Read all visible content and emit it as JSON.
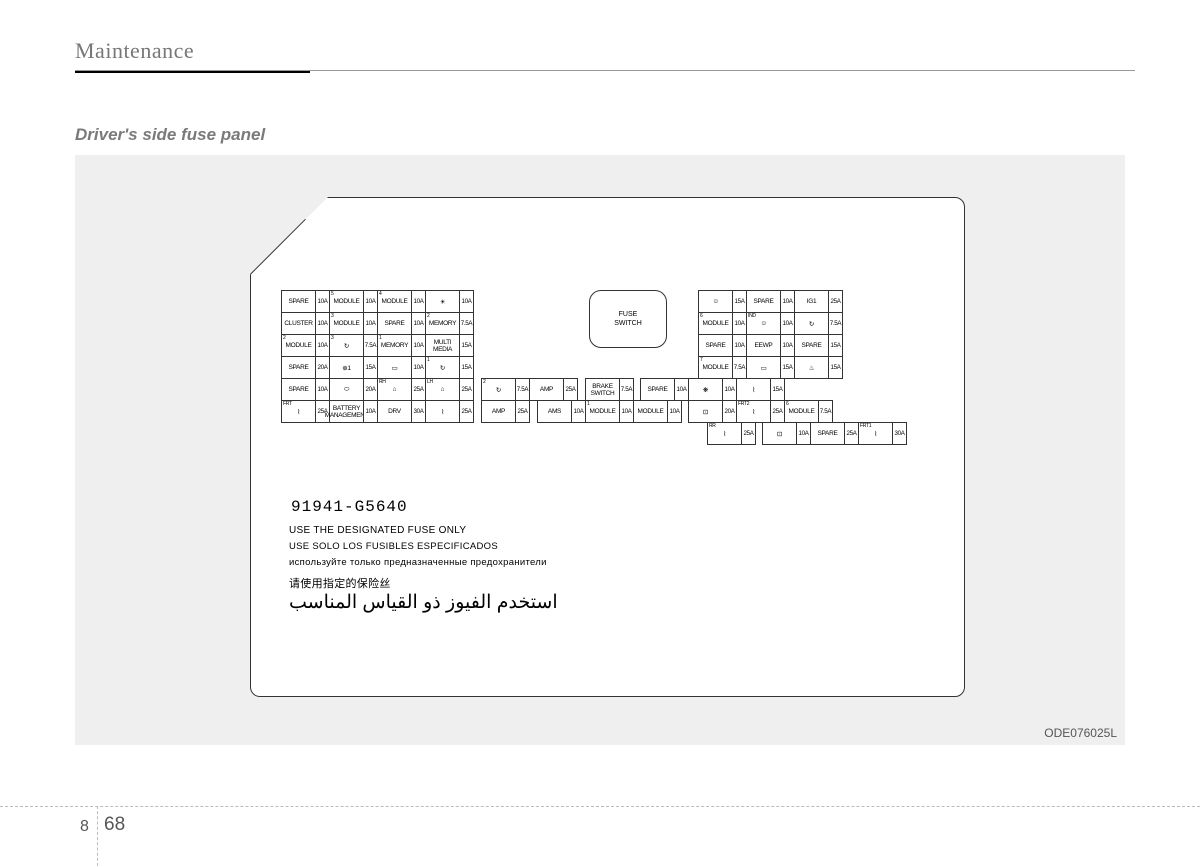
{
  "header": {
    "title": "Maintenance"
  },
  "subheader": "Driver's side fuse panel",
  "image_code": "ODE076025L",
  "part_number": "91941-G5640",
  "instructions": {
    "en": "USE THE DESIGNATED FUSE ONLY",
    "es": "USE SOLO LOS FUSIBLES ESPECIFICADOS",
    "ru": "используйте только предназначенные предохранители",
    "cn": "请使用指定的保险丝",
    "ar": "استخدم الفيوز ذو القياس المناسب"
  },
  "page": {
    "chapter": "8",
    "num": "68"
  },
  "fuse_switch": "FUSE\nSWITCH",
  "left_rows": [
    [
      [
        "SPARE",
        "10A",
        ""
      ],
      [
        "MODULE",
        "10A",
        "5"
      ],
      [
        "MODULE",
        "10A",
        "4"
      ],
      [
        "☀",
        "10A",
        ""
      ]
    ],
    [
      [
        "CLUSTER",
        "10A",
        ""
      ],
      [
        "MODULE",
        "10A",
        "3"
      ],
      [
        "SPARE",
        "10A",
        ""
      ],
      [
        "MEMORY",
        "7.5A",
        "2"
      ]
    ],
    [
      [
        "MODULE",
        "10A",
        "2"
      ],
      [
        "↻",
        "7.5A",
        "3"
      ],
      [
        "MEMORY",
        "10A",
        "1"
      ],
      [
        "MULTI\nMEDIA",
        "15A",
        ""
      ]
    ],
    [
      [
        "SPARE",
        "20A",
        ""
      ],
      [
        "⊕1",
        "15A",
        ""
      ],
      [
        "▭",
        "10A",
        ""
      ],
      [
        "↻",
        "15A",
        "1"
      ]
    ],
    [
      [
        "SPARE",
        "10A",
        ""
      ],
      [
        "⬭",
        "20A",
        ""
      ],
      [
        "⌂",
        "25A",
        "RH"
      ],
      [
        "⌂",
        "25A",
        "LH"
      ]
    ]
  ],
  "left_row6": [
    [
      "⌇",
      "25A",
      "FRT"
    ],
    [
      "BATTERY\nMANAGEMENT",
      "10A",
      ""
    ],
    [
      "DRV",
      "30A",
      ""
    ],
    [
      "⌇",
      "25A",
      ""
    ]
  ],
  "mid_row5": [
    [
      "↻",
      "7.5A",
      "2"
    ],
    [
      "AMP",
      "25A",
      ""
    ]
  ],
  "mid_row6": [
    [
      "↻",
      "7.5A",
      "2"
    ],
    [
      "AMS",
      "10A",
      ""
    ],
    [
      "BRAKE\nSWITCH",
      "7.5A",
      ""
    ],
    [
      "MODULE",
      "10A",
      "1"
    ],
    [
      "MODULE",
      "10A",
      ""
    ]
  ],
  "right_rows": [
    [
      [
        "☺",
        "15A",
        ""
      ],
      [
        "SPARE",
        "10A",
        ""
      ],
      [
        "IG1",
        "25A",
        ""
      ]
    ],
    [
      [
        "MODULE",
        "10A",
        "6"
      ],
      [
        "☺",
        "10A",
        "IND"
      ],
      [
        "↻",
        "7.5A",
        ""
      ]
    ],
    [
      [
        "SPARE",
        "10A",
        ""
      ],
      [
        "EEWP",
        "10A",
        ""
      ],
      [
        "SPARE",
        "15A",
        ""
      ]
    ],
    [
      [
        "MODULE",
        "7.5A",
        "7"
      ],
      [
        "▭",
        "15A",
        ""
      ],
      [
        "♨",
        "15A",
        ""
      ]
    ],
    [
      [
        "SPARE",
        "10A",
        ""
      ],
      [
        "❋",
        "10A",
        ""
      ],
      [
        "⌇",
        "15A",
        ""
      ]
    ],
    [
      [
        "⊡",
        "20A",
        ""
      ],
      [
        "⌇",
        "25A",
        "FRT2"
      ],
      [
        "MODULE",
        "7.5A",
        "6"
      ]
    ],
    [
      [
        "⊡",
        "10A",
        ""
      ],
      [
        "SPARE",
        "25A",
        ""
      ],
      [
        "⌇",
        "30A",
        "FRT1"
      ]
    ]
  ],
  "right_row7_pre": [
    [
      "⌇",
      "25A",
      "RR"
    ]
  ]
}
